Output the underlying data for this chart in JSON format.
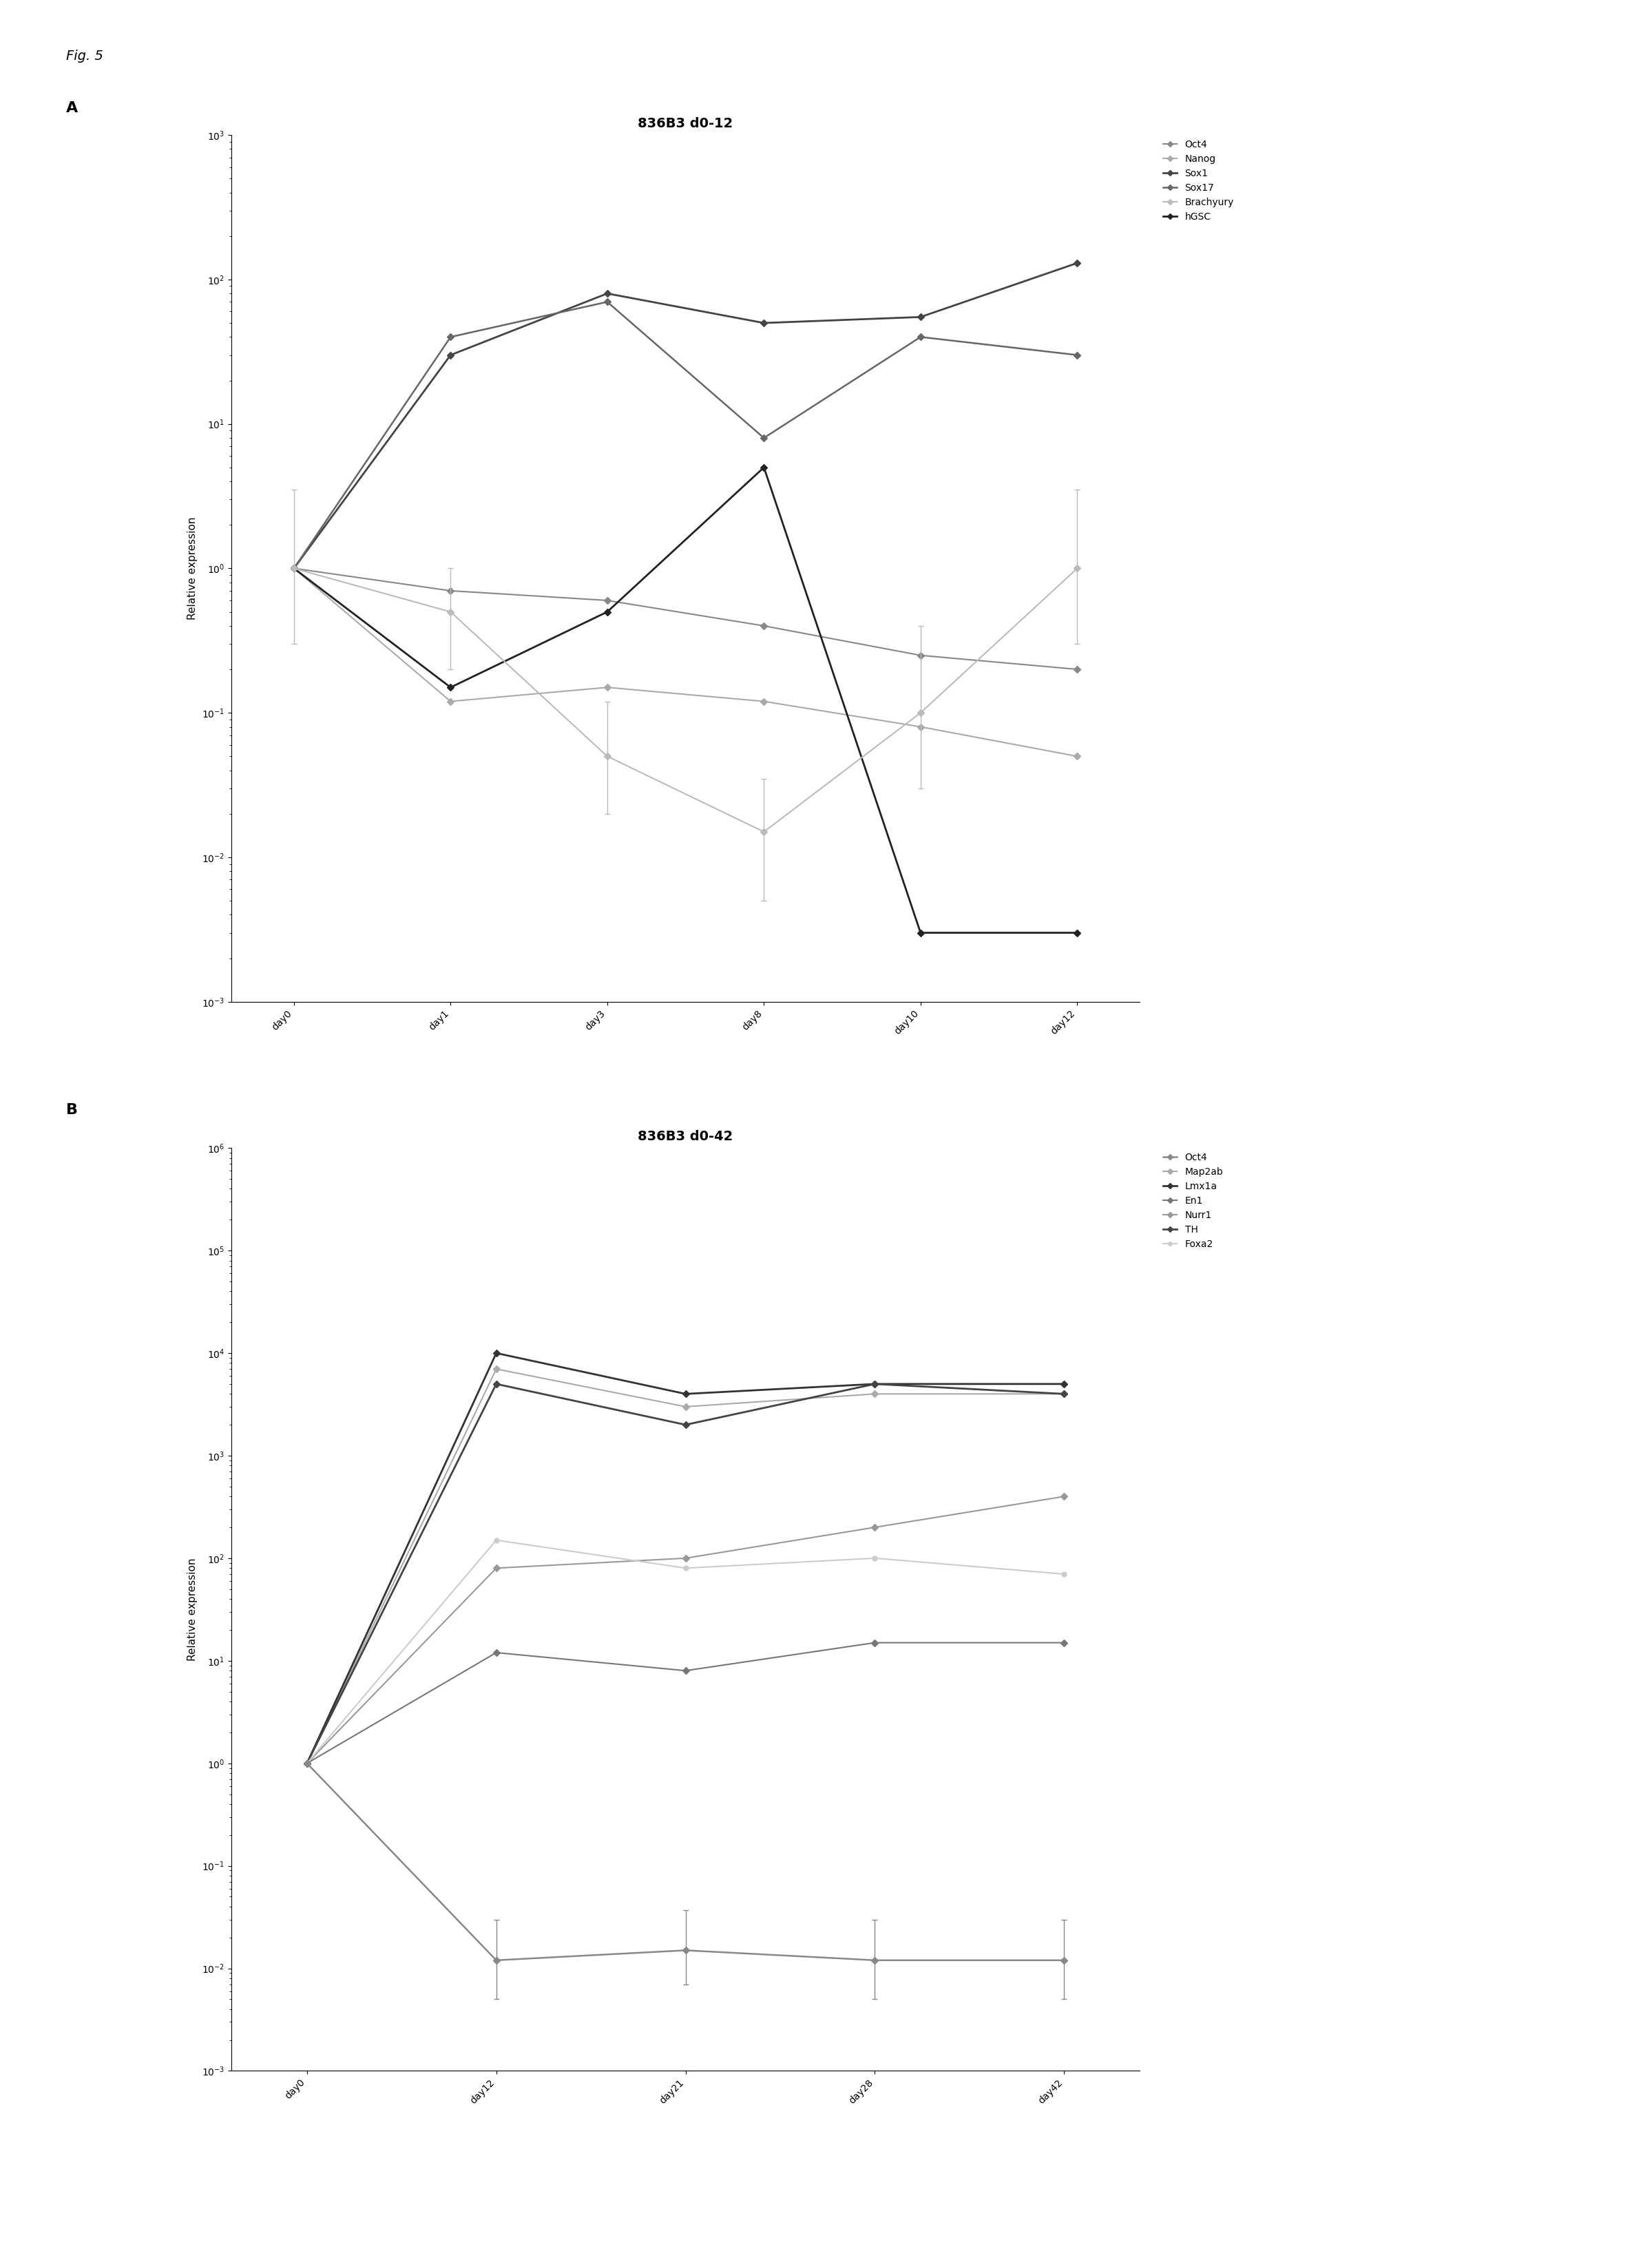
{
  "fig_label": "Fig. 5",
  "panel_A": {
    "title": "836B3 d0-12",
    "ylabel": "Relative expression",
    "xticklabels": [
      "day0",
      "day1",
      "day3",
      "day8",
      "day10",
      "day12"
    ],
    "ylim": [
      0.001,
      1000.0
    ],
    "series": [
      {
        "label": "Oct4",
        "color": "#888888",
        "marker": "D",
        "markersize": 5,
        "linewidth": 1.5,
        "linestyle": "-",
        "y": [
          1.0,
          0.7,
          0.6,
          0.4,
          0.25,
          0.2
        ],
        "has_err": false
      },
      {
        "label": "Nanog",
        "color": "#aaaaaa",
        "marker": "D",
        "markersize": 5,
        "linewidth": 1.5,
        "linestyle": "-",
        "y": [
          1.0,
          0.12,
          0.15,
          0.12,
          0.08,
          0.05
        ],
        "has_err": false
      },
      {
        "label": "Sox1",
        "color": "#444444",
        "marker": "D",
        "markersize": 5,
        "linewidth": 2.0,
        "linestyle": "-",
        "y": [
          1.0,
          30.0,
          80.0,
          50.0,
          55.0,
          130.0
        ],
        "has_err": false
      },
      {
        "label": "Sox17",
        "color": "#666666",
        "marker": "D",
        "markersize": 5,
        "linewidth": 1.8,
        "linestyle": "-",
        "y": [
          1.0,
          40.0,
          70.0,
          8.0,
          40.0,
          30.0
        ],
        "has_err": false
      },
      {
        "label": "Brachyury",
        "color": "#bbbbbb",
        "marker": "D",
        "markersize": 5,
        "linewidth": 1.5,
        "linestyle": "-",
        "y": [
          1.0,
          0.5,
          0.05,
          0.015,
          0.1,
          1.0
        ],
        "yerr_lo": [
          0.7,
          0.3,
          0.03,
          0.01,
          0.07,
          0.7
        ],
        "yerr_hi": [
          2.5,
          0.5,
          0.07,
          0.02,
          0.3,
          2.5
        ],
        "has_err": true
      },
      {
        "label": "hGSC",
        "color": "#222222",
        "marker": "D",
        "markersize": 5,
        "linewidth": 2.0,
        "linestyle": "-",
        "y": [
          1.0,
          0.15,
          0.5,
          5.0,
          0.003,
          0.003
        ],
        "has_err": false
      }
    ]
  },
  "panel_B": {
    "title": "836B3 d0-42",
    "ylabel": "Relative expression",
    "xticklabels": [
      "day0",
      "day12",
      "day21",
      "day28",
      "day42"
    ],
    "ylim": [
      0.001,
      1000000.0
    ],
    "series": [
      {
        "label": "Oct4",
        "color": "#888888",
        "marker": "D",
        "markersize": 5,
        "linewidth": 1.8,
        "linestyle": "-",
        "y": [
          1.0,
          0.012,
          0.015,
          0.012,
          0.012
        ],
        "yerr_lo": [
          0.0,
          0.007,
          0.008,
          0.007,
          0.007
        ],
        "yerr_hi": [
          0.0,
          0.018,
          0.022,
          0.018,
          0.018
        ],
        "has_err": true
      },
      {
        "label": "Map2ab",
        "color": "#aaaaaa",
        "marker": "D",
        "markersize": 5,
        "linewidth": 1.5,
        "linestyle": "-",
        "y": [
          1.0,
          7000.0,
          3000.0,
          4000.0,
          4000.0
        ],
        "has_err": false
      },
      {
        "label": "Lmx1a",
        "color": "#333333",
        "marker": "D",
        "markersize": 5,
        "linewidth": 2.0,
        "linestyle": "-",
        "y": [
          1.0,
          10000.0,
          4000.0,
          5000.0,
          5000.0
        ],
        "has_err": false
      },
      {
        "label": "En1",
        "color": "#777777",
        "marker": "D",
        "markersize": 5,
        "linewidth": 1.5,
        "linestyle": "-",
        "y": [
          1.0,
          12.0,
          8.0,
          15.0,
          15.0
        ],
        "has_err": false
      },
      {
        "label": "Nurr1",
        "color": "#999999",
        "marker": "D",
        "markersize": 5,
        "linewidth": 1.5,
        "linestyle": "-",
        "y": [
          1.0,
          80.0,
          100.0,
          200.0,
          400.0
        ],
        "has_err": false
      },
      {
        "label": "TH",
        "color": "#444444",
        "marker": "D",
        "markersize": 5,
        "linewidth": 2.0,
        "linestyle": "-",
        "y": [
          1.0,
          5000.0,
          2000.0,
          5000.0,
          4000.0
        ],
        "has_err": false
      },
      {
        "label": "Foxa2",
        "color": "#cccccc",
        "marker": "o",
        "markersize": 5,
        "linewidth": 1.5,
        "linestyle": "-",
        "y": [
          1.0,
          150.0,
          80.0,
          100.0,
          70.0
        ],
        "has_err": false
      }
    ]
  },
  "background_color": "#ffffff",
  "text_color": "#000000",
  "fig_label_fontsize": 14,
  "panel_label_fontsize": 16,
  "title_fontsize": 14,
  "ylabel_fontsize": 11,
  "tick_fontsize": 10,
  "legend_fontsize": 10
}
